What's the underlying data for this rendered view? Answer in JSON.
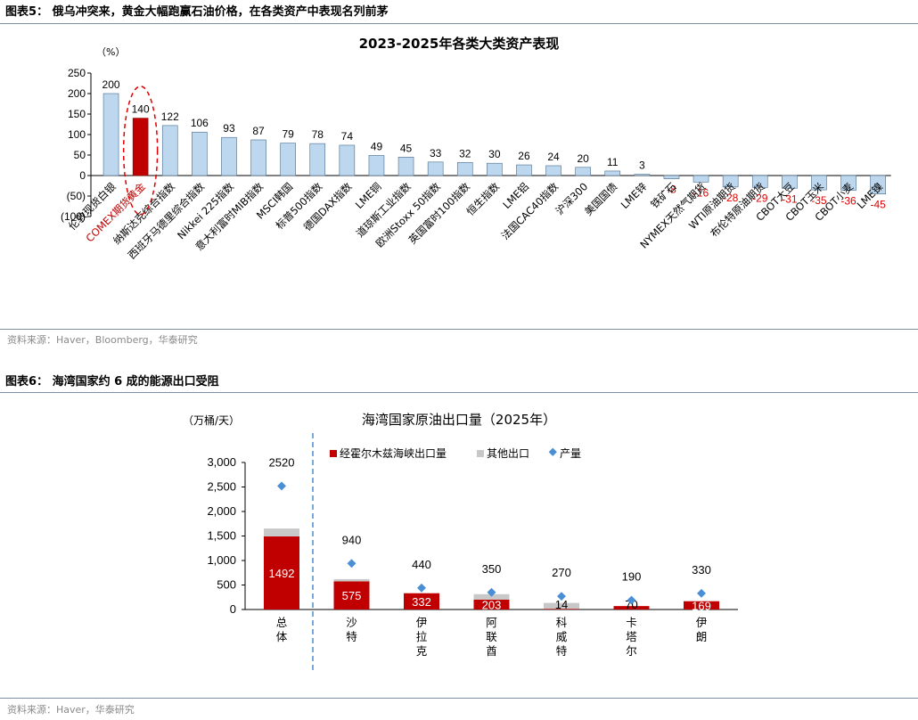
{
  "figure5": {
    "header": "图表5：  俄乌冲突来，黄金大幅跑赢石油价格，在各类资产中表现名列前茅",
    "source": "资料来源：Haver，Bloomberg，华泰研究"
  },
  "figure6": {
    "header": "图表6：  海湾国家约 6 成的能源出口受阻",
    "source": "资料来源：Haver，华泰研究"
  },
  "chart_data": [
    {
      "type": "bar",
      "title": "2023-2025年各类大类资产表现",
      "ylabel": "（%）",
      "ylim": [
        -100,
        250
      ],
      "yticks": [
        "(100)",
        "(50)",
        "0",
        "50",
        "100",
        "150",
        "200",
        "250"
      ],
      "grid": false,
      "highlight_category": "COMEX期货黄金",
      "highlight_color": "#c00000",
      "bar_color": "#bdd7ee",
      "negative_label_color": "#e00000",
      "categories": [
        "伦敦现货白银",
        "COMEX期货黄金",
        "纳斯达克综合指数",
        "西班牙马德里综合指数",
        "Nikkei 225指数",
        "意大利富时MIB指数",
        "MSCI韩国",
        "标普500指数",
        "德国DAX指数",
        "LME铜",
        "道琼斯工业指数",
        "欧洲Stoxx 50指数",
        "英国富时100指数",
        "恒生指数",
        "LME铝",
        "法国CAC40指数",
        "沪深300",
        "美国国债",
        "LME锌",
        "铁矿石",
        "NYMEX天然气期货",
        "WTI原油期货",
        "布伦特原油期货",
        "CBOT大豆",
        "CBOT玉米",
        "CBOT小麦",
        "LME镍"
      ],
      "values": [
        200,
        140,
        122,
        106,
        93,
        87,
        79,
        78,
        74,
        49,
        45,
        33,
        32,
        30,
        26,
        24,
        20,
        11,
        3,
        -8,
        -16,
        -28,
        -29,
        -31,
        -35,
        -36,
        -45
      ]
    },
    {
      "type": "bar",
      "title": "海湾国家原油出口量（2025年）",
      "ylabel": "（万桶/天）",
      "ylim": [
        0,
        3000
      ],
      "yticks": [
        "0",
        "500",
        "1,000",
        "1,500",
        "2,000",
        "2,500",
        "3,000"
      ],
      "legend_position": "top",
      "categories": [
        "总体",
        "沙特",
        "伊拉克",
        "阿联酋",
        "科威特",
        "卡塔尔",
        "伊朗"
      ],
      "series": [
        {
          "name": "经霍尔木兹海峡出口量",
          "color": "#c00000",
          "values": [
            1492,
            575,
            332,
            203,
            14,
            70,
            169
          ]
        },
        {
          "name": "其他出口",
          "color": "#c8c8c8",
          "values": [
            160,
            45,
            0,
            110,
            120,
            0,
            0
          ]
        },
        {
          "name": "产量",
          "color": "#4a8fd4",
          "values": [
            2520,
            940,
            440,
            350,
            270,
            190,
            330
          ]
        }
      ]
    }
  ]
}
